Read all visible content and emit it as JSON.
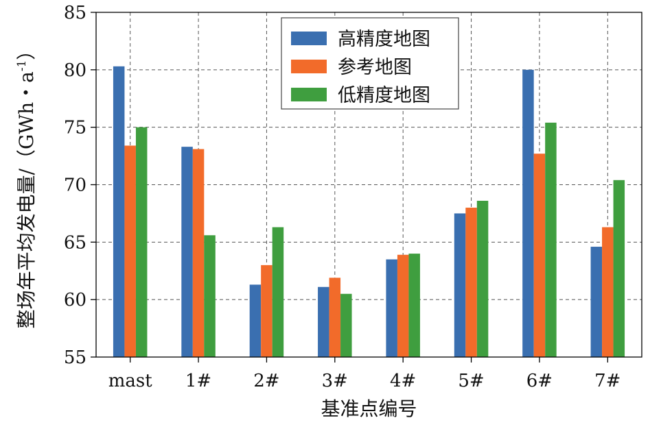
{
  "chart_data": {
    "type": "bar",
    "categories": [
      "mast",
      "1#",
      "2#",
      "3#",
      "4#",
      "5#",
      "6#",
      "7#"
    ],
    "series": [
      {
        "name": "高精度地图",
        "color": "#3a6fb0",
        "values": [
          80.3,
          73.3,
          61.3,
          61.1,
          63.5,
          67.5,
          80.0,
          64.6
        ]
      },
      {
        "name": "参考地图",
        "color": "#f26b2a",
        "values": [
          73.4,
          73.1,
          63.0,
          61.9,
          63.9,
          68.0,
          72.7,
          66.3
        ]
      },
      {
        "name": "低精度地图",
        "color": "#3f9e3f",
        "values": [
          75.0,
          65.6,
          66.3,
          60.5,
          64.0,
          68.6,
          75.4,
          70.4
        ]
      }
    ],
    "xlabel": "基准点编号",
    "ylabel": "整场年平均发电量/（GWh・a",
    "ylabel_sup": "-1",
    "ylabel_close": "）",
    "ylim": [
      55,
      85
    ],
    "yticks": [
      55,
      60,
      65,
      70,
      75,
      80,
      85
    ],
    "grid": true,
    "legend_position": "top-center"
  }
}
